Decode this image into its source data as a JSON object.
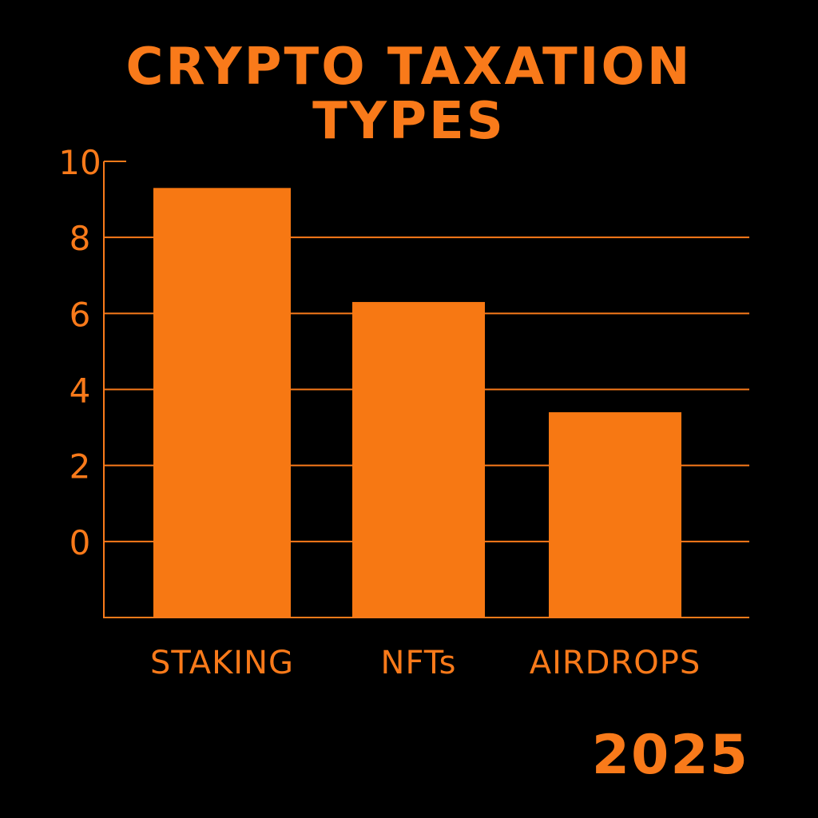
{
  "colors": {
    "background": "#000000",
    "accent": "#f97a1a",
    "bar": "#f77813"
  },
  "chart_data": {
    "type": "bar",
    "title": [
      "CRYPTO TAXATION",
      "TYPES"
    ],
    "categories": [
      "STAKING",
      "NFTs",
      "AIRDROPS"
    ],
    "values": [
      9.3,
      6.3,
      3.4
    ],
    "ylim": [
      -2,
      10
    ],
    "yticks": [
      0,
      2,
      4,
      6,
      8,
      10
    ],
    "xlabel": "",
    "ylabel": "",
    "grid": true,
    "legend": "none",
    "footer": "2025"
  }
}
